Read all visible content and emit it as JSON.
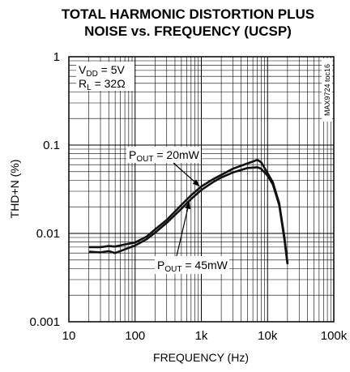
{
  "chart_data": {
    "type": "line",
    "title_line1": "TOTAL HARMONIC DISTORTION PLUS",
    "title_line2": "NOISE vs. FREQUENCY (UCSP)",
    "xlabel": "FREQUENCY (Hz)",
    "ylabel": "THD+N (%)",
    "x_scale": "log",
    "y_scale": "log",
    "xlim": [
      10,
      100000
    ],
    "ylim": [
      0.001,
      1
    ],
    "grid": true,
    "x_ticks": [
      {
        "value": 10,
        "label": "10"
      },
      {
        "value": 100,
        "label": "100"
      },
      {
        "value": 1000,
        "label": "1k"
      },
      {
        "value": 10000,
        "label": "10k"
      },
      {
        "value": 100000,
        "label": "100k"
      }
    ],
    "y_ticks": [
      {
        "value": 1,
        "label": "1"
      },
      {
        "value": 0.1,
        "label": "0.1"
      },
      {
        "value": 0.01,
        "label": "0.01"
      },
      {
        "value": 0.001,
        "label": "0.001"
      }
    ],
    "conditions": {
      "vdd": {
        "main": "V",
        "sub": "DD",
        "rest": " = 5V"
      },
      "rl": {
        "main": "R",
        "sub": "L",
        "rest": " = 32Ω"
      }
    },
    "code": "MAX9724 toc16",
    "series": [
      {
        "name_main": "P",
        "name_sub": "OUT",
        "name_rest": " = 20mW",
        "x": [
          20,
          30,
          40,
          50,
          70,
          100,
          150,
          200,
          300,
          500,
          700,
          1000,
          1500,
          2000,
          3000,
          5000,
          7000,
          8000,
          10000,
          12000,
          15000,
          18000,
          20000
        ],
        "y": [
          0.007,
          0.007,
          0.0072,
          0.0071,
          0.0075,
          0.0079,
          0.0092,
          0.0111,
          0.0142,
          0.021,
          0.027,
          0.034,
          0.041,
          0.046,
          0.054,
          0.062,
          0.068,
          0.064,
          0.048,
          0.038,
          0.022,
          0.009,
          0.0045
        ]
      },
      {
        "name_main": "P",
        "name_sub": "OUT",
        "name_rest": " = 45mW",
        "x": [
          20,
          30,
          40,
          50,
          70,
          100,
          150,
          200,
          300,
          500,
          700,
          1000,
          1500,
          2000,
          3000,
          5000,
          7000,
          8000,
          10000,
          12000,
          15000,
          18000,
          20000
        ],
        "y": [
          0.0062,
          0.0061,
          0.0063,
          0.006,
          0.0066,
          0.0073,
          0.0086,
          0.0102,
          0.0132,
          0.019,
          0.0245,
          0.031,
          0.038,
          0.043,
          0.049,
          0.055,
          0.056,
          0.054,
          0.045,
          0.036,
          0.021,
          0.0085,
          0.0045
        ]
      }
    ],
    "annotations": [
      {
        "series": 0,
        "arrow_to": {
          "x": 950,
          "y": 0.034
        }
      },
      {
        "series": 1,
        "arrow_to": {
          "x": 660,
          "y": 0.023
        }
      }
    ]
  }
}
